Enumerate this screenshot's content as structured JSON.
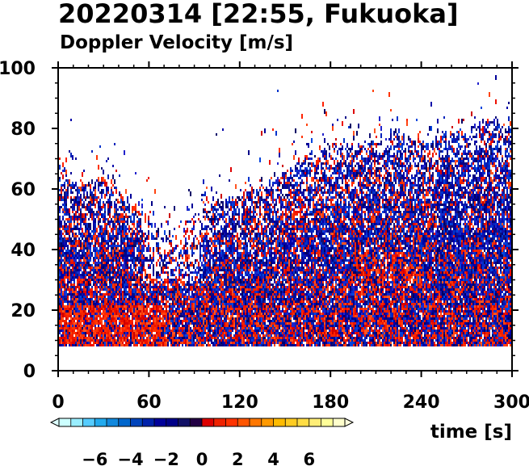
{
  "chart_data": {
    "type": "heatmap",
    "title": "20220314 [22:55, Fukuoka]",
    "subtitle": "Doppler Velocity [m/s]",
    "xlabel": "time [s]",
    "ylabel": "",
    "xlim": [
      0,
      300
    ],
    "ylim": [
      0,
      100
    ],
    "x_ticks": [
      0,
      60,
      120,
      180,
      240,
      300
    ],
    "y_ticks": [
      0,
      20,
      40,
      60,
      80,
      100
    ],
    "data_floor_height": 8,
    "echo_top": [
      {
        "t": 0,
        "h": 68
      },
      {
        "t": 15,
        "h": 62
      },
      {
        "t": 30,
        "h": 64
      },
      {
        "t": 45,
        "h": 58
      },
      {
        "t": 60,
        "h": 50
      },
      {
        "t": 75,
        "h": 46
      },
      {
        "t": 90,
        "h": 52
      },
      {
        "t": 105,
        "h": 56
      },
      {
        "t": 120,
        "h": 58
      },
      {
        "t": 135,
        "h": 62
      },
      {
        "t": 150,
        "h": 66
      },
      {
        "t": 165,
        "h": 72
      },
      {
        "t": 180,
        "h": 76
      },
      {
        "t": 195,
        "h": 74
      },
      {
        "t": 210,
        "h": 76
      },
      {
        "t": 225,
        "h": 78
      },
      {
        "t": 240,
        "h": 76
      },
      {
        "t": 255,
        "h": 78
      },
      {
        "t": 270,
        "h": 80
      },
      {
        "t": 285,
        "h": 84
      },
      {
        "t": 300,
        "h": 82
      }
    ],
    "colorbar": {
      "min": -8,
      "max": 8,
      "tick_labels": [
        "−6",
        "−4",
        "−2",
        "0",
        "2",
        "4",
        "6"
      ],
      "tick_values": [
        -6,
        -4,
        -2,
        0,
        2,
        4,
        6
      ],
      "colors": [
        "#ccffff",
        "#99eeff",
        "#55ccff",
        "#22aaee",
        "#1188dd",
        "#0066cc",
        "#0044bb",
        "#0022aa",
        "#000099",
        "#000088",
        "#111166",
        "#220044",
        "#dd0000",
        "#ee2200",
        "#ff3300",
        "#ff5500",
        "#ff7700",
        "#ff9900",
        "#ffbb00",
        "#ffcc22",
        "#ffdd44",
        "#ffee77",
        "#ffff99",
        "#ffffcc"
      ]
    }
  }
}
